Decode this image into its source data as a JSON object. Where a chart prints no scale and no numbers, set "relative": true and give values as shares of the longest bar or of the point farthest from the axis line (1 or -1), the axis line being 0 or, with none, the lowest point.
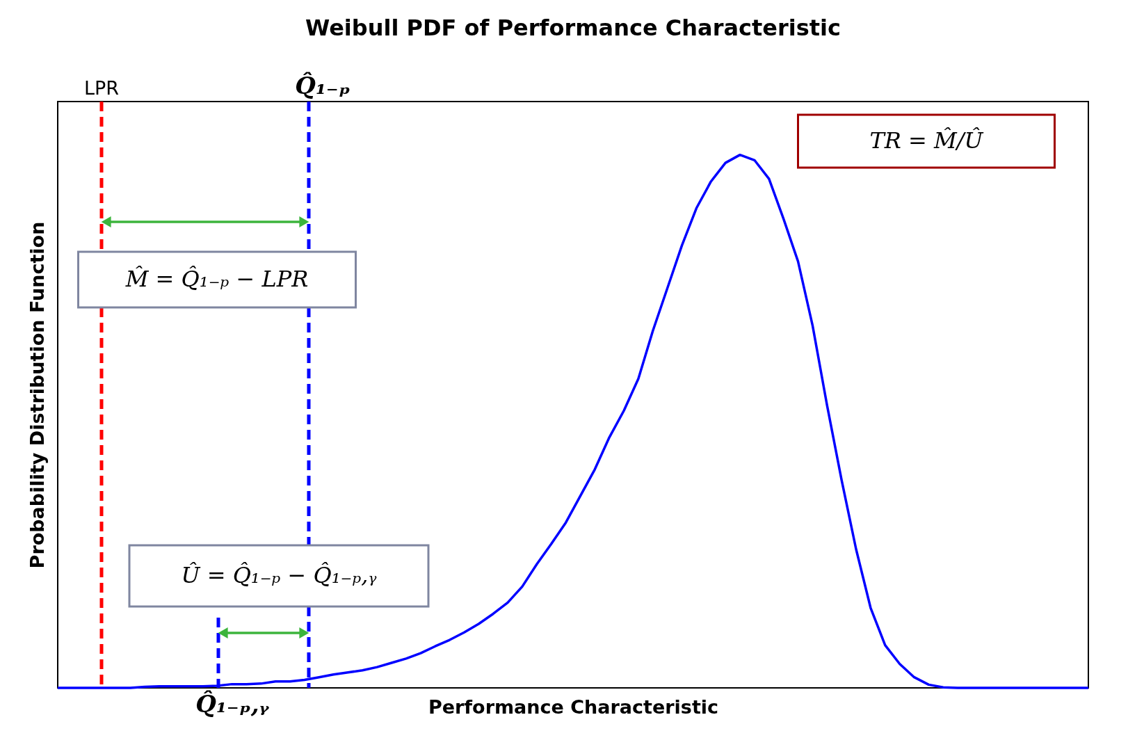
{
  "chart_data": {
    "type": "line",
    "title": "Weibull PDF of Performance Characteristic",
    "xlabel": "Performance Characteristic",
    "ylabel": "Probability Distribution Function",
    "relative": true,
    "grid": false,
    "categories": [
      null,
      null,
      null,
      null,
      null,
      null,
      null,
      null,
      null,
      null,
      null,
      null,
      null,
      null,
      null,
      null,
      null,
      null,
      null,
      null,
      null,
      null,
      null,
      null,
      null,
      null,
      null,
      null,
      null,
      null,
      null,
      null,
      null,
      null,
      null,
      null,
      null,
      null,
      null,
      null,
      null,
      null,
      null,
      null,
      null,
      null,
      null,
      null,
      null,
      null,
      null,
      null,
      null,
      null,
      null,
      null,
      null,
      null,
      null,
      null,
      null,
      null,
      null,
      null,
      null,
      null,
      null,
      null,
      null,
      null,
      null,
      null
    ],
    "series": [
      {
        "color": "#0000ff",
        "values": [
          0,
          0,
          0,
          0,
          0,
          0,
          0.002,
          0.003,
          0.003,
          0.003,
          0.003,
          0.004,
          0.007,
          0.007,
          0.008,
          0.012,
          0.012,
          0.015,
          0.02,
          0.025,
          0.029,
          0.033,
          0.039,
          0.047,
          0.055,
          0.065,
          0.078,
          0.09,
          0.104,
          0.12,
          0.139,
          0.16,
          0.19,
          0.232,
          0.27,
          0.31,
          0.36,
          0.41,
          0.47,
          0.52,
          0.58,
          0.67,
          0.75,
          0.83,
          0.9,
          0.95,
          0.985,
          1,
          0.99,
          0.955,
          0.88,
          0.8,
          0.68,
          0.53,
          0.39,
          0.26,
          0.15,
          0.08,
          0.045,
          0.02,
          0.006,
          0.001,
          0,
          0,
          0,
          0,
          0,
          0,
          0,
          0,
          0,
          0
        ]
      }
    ],
    "annotations": [
      "LPR",
      "Q̂₁₋ₚ",
      "Q̂₁₋ₚ,ᵧ",
      "TR = M̂/Û",
      "M̂ = Q̂₁₋ₚ − LPR",
      "Û = Q̂₁₋ₚ − Q̂₁₋ₚ,ᵧ"
    ]
  }
}
